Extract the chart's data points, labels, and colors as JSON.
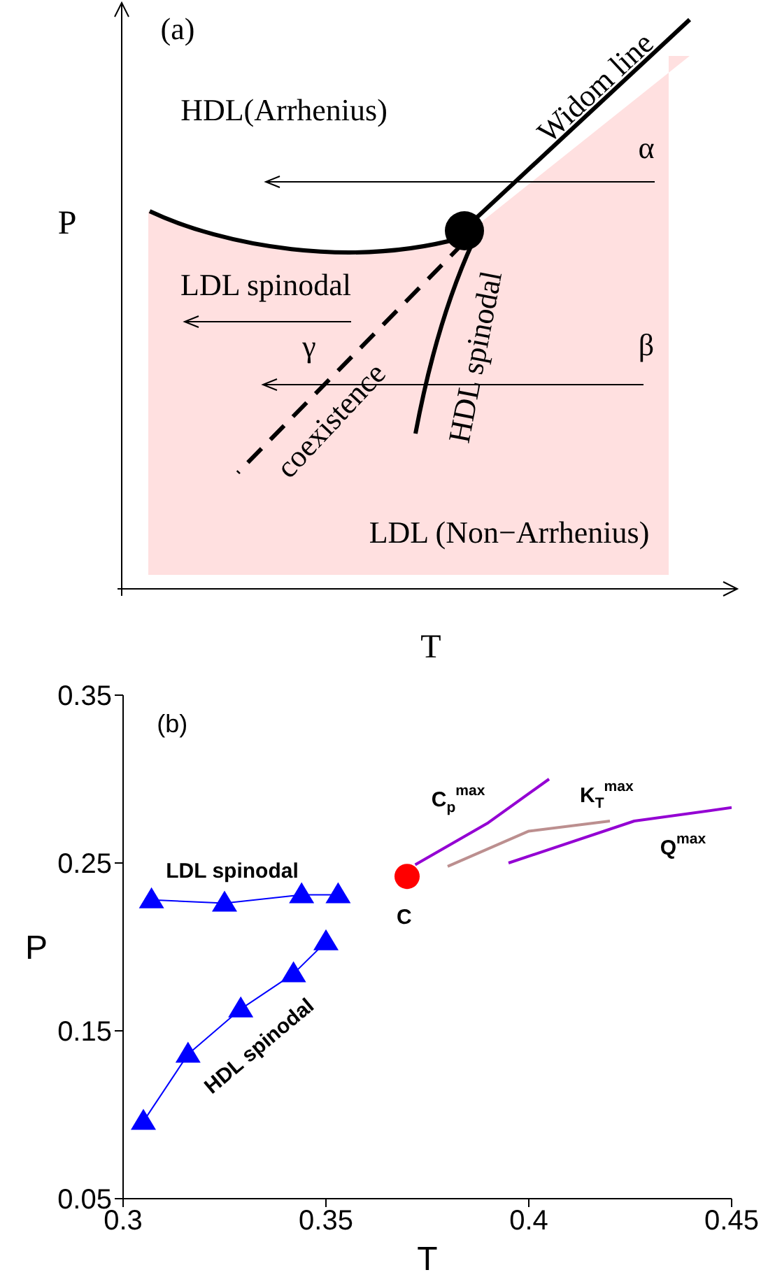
{
  "chart_data": [
    {
      "type": "other",
      "xlabel": "T",
      "ylabel": "P",
      "annotations": [
        "(a)",
        "HDL(Arrhenius)",
        "Widom line",
        "α",
        "LDL spinodal",
        "γ",
        "β",
        "coexistence",
        "HDL spinodal",
        "LDL (Non−Arrhenius)"
      ]
    },
    {
      "type": "line",
      "xlabel": "T",
      "ylabel": "P",
      "xlim": [
        0.3,
        0.45
      ],
      "xticks": [
        0.3,
        0.35,
        0.4,
        0.45
      ],
      "ylim": [
        0.05,
        0.35
      ],
      "yticks": [
        0.05,
        0.15,
        0.25,
        0.35
      ],
      "series": [
        {
          "color": "#0000ff",
          "marker": "triangle",
          "x": [
            0.307,
            0.325,
            0.344,
            0.353
          ],
          "values": [
            0.228,
            0.226,
            0.231,
            0.231
          ]
        },
        {
          "color": "#0000ff",
          "marker": "triangle",
          "x": [
            0.305,
            0.316,
            0.329,
            0.342,
            0.35
          ],
          "values": [
            0.096,
            0.136,
            0.163,
            0.184,
            0.203
          ]
        },
        {
          "type": "scatter",
          "color": "#ff0000",
          "marker": "circle",
          "x": [
            0.37
          ],
          "values": [
            0.242
          ]
        },
        {
          "color": "#9400d3",
          "marker": "none",
          "x": [
            0.372,
            0.39,
            0.405
          ],
          "values": [
            0.249,
            0.274,
            0.3
          ]
        },
        {
          "color": "#bc8f8f",
          "marker": "none",
          "x": [
            0.38,
            0.4,
            0.42
          ],
          "values": [
            0.248,
            0.269,
            0.275
          ]
        },
        {
          "color": "#9400d3",
          "marker": "none",
          "x": [
            0.395,
            0.426,
            0.45
          ],
          "values": [
            0.25,
            0.275,
            0.283
          ]
        }
      ],
      "annotations": [
        "(b)",
        "LDL spinodal",
        "HDL spinodal",
        "C",
        "C$_{p}$$^{max}$",
        "K$_{T}$$^{max}$",
        "Q$^{max}$"
      ]
    }
  ]
}
